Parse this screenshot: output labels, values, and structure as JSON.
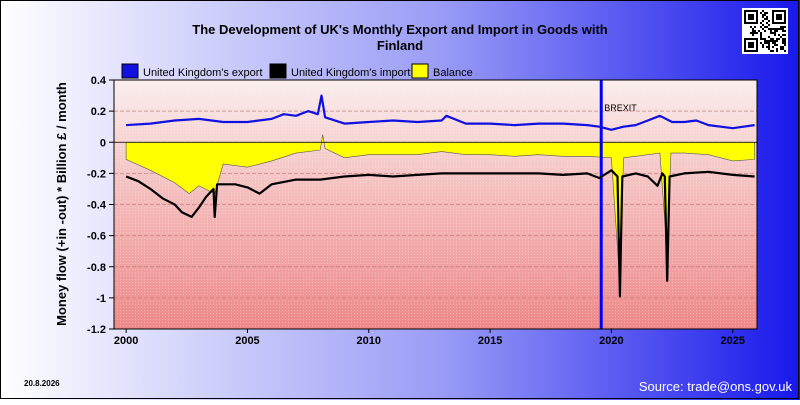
{
  "chart_data": {
    "type": "line",
    "title": "The Development of UK's Monthly Export and Import in Goods with Finland",
    "title_lines": [
      "The Development of UK's Monthly Export and Import in Goods with",
      "Finland"
    ],
    "ylabel": "Money flow (+in -out) * Billion £ / month",
    "xlabel": "",
    "ylim": [
      -1.2,
      0.4
    ],
    "xlim": [
      1999.5,
      2026.0
    ],
    "y_ticks": [
      "0.4",
      "0.2",
      "0",
      "-0.2",
      "-0.4",
      "-0.6",
      "-0.8",
      "-1",
      "-1.2"
    ],
    "x_ticks": [
      "2000",
      "2005",
      "2010",
      "2015",
      "2020",
      "2025"
    ],
    "legend_position": "top",
    "grid": "horizontal dashed lines at every 0.02 (minor) and labelled ticks every 0.2",
    "legend": [
      {
        "name": "United Kingdom's export",
        "color": "#1010e0"
      },
      {
        "name": "United Kingdom's import",
        "color": "#000000"
      },
      {
        "name": "Balance",
        "color": "#ffff00"
      }
    ],
    "annotations": [
      {
        "label": "BREXIT",
        "x": 2019.58,
        "color": "#0000ff"
      }
    ],
    "series": [
      {
        "name": "United Kingdom's export",
        "color": "#1010e0",
        "points": [
          [
            2000.0,
            0.11
          ],
          [
            2001.0,
            0.12
          ],
          [
            2002.0,
            0.14
          ],
          [
            2003.0,
            0.15
          ],
          [
            2004.0,
            0.13
          ],
          [
            2005.0,
            0.13
          ],
          [
            2006.0,
            0.15
          ],
          [
            2006.5,
            0.18
          ],
          [
            2007.0,
            0.17
          ],
          [
            2007.5,
            0.2
          ],
          [
            2007.9,
            0.18
          ],
          [
            2008.05,
            0.3
          ],
          [
            2008.2,
            0.16
          ],
          [
            2009.0,
            0.12
          ],
          [
            2010.0,
            0.13
          ],
          [
            2011.0,
            0.14
          ],
          [
            2012.0,
            0.13
          ],
          [
            2013.0,
            0.14
          ],
          [
            2013.2,
            0.17
          ],
          [
            2014.0,
            0.12
          ],
          [
            2015.0,
            0.12
          ],
          [
            2016.0,
            0.11
          ],
          [
            2017.0,
            0.12
          ],
          [
            2018.0,
            0.12
          ],
          [
            2019.0,
            0.11
          ],
          [
            2019.5,
            0.1
          ],
          [
            2020.0,
            0.08
          ],
          [
            2020.5,
            0.1
          ],
          [
            2021.0,
            0.11
          ],
          [
            2021.5,
            0.14
          ],
          [
            2022.0,
            0.17
          ],
          [
            2022.5,
            0.13
          ],
          [
            2023.0,
            0.13
          ],
          [
            2023.5,
            0.14
          ],
          [
            2024.0,
            0.11
          ],
          [
            2025.0,
            0.09
          ],
          [
            2025.9,
            0.11
          ]
        ]
      },
      {
        "name": "United Kingdom's import",
        "color": "#000000",
        "points": [
          [
            2000.0,
            -0.22
          ],
          [
            2000.5,
            -0.25
          ],
          [
            2001.0,
            -0.3
          ],
          [
            2001.5,
            -0.36
          ],
          [
            2002.0,
            -0.4
          ],
          [
            2002.3,
            -0.45
          ],
          [
            2002.7,
            -0.48
          ],
          [
            2003.0,
            -0.42
          ],
          [
            2003.3,
            -0.35
          ],
          [
            2003.6,
            -0.3
          ],
          [
            2003.65,
            -0.48
          ],
          [
            2003.75,
            -0.27
          ],
          [
            2004.5,
            -0.27
          ],
          [
            2005.0,
            -0.29
          ],
          [
            2005.5,
            -0.33
          ],
          [
            2006.0,
            -0.27
          ],
          [
            2007.0,
            -0.24
          ],
          [
            2008.0,
            -0.24
          ],
          [
            2009.0,
            -0.22
          ],
          [
            2010.0,
            -0.21
          ],
          [
            2011.0,
            -0.22
          ],
          [
            2012.0,
            -0.21
          ],
          [
            2013.0,
            -0.2
          ],
          [
            2014.0,
            -0.2
          ],
          [
            2015.0,
            -0.2
          ],
          [
            2016.0,
            -0.2
          ],
          [
            2017.0,
            -0.2
          ],
          [
            2018.0,
            -0.21
          ],
          [
            2019.0,
            -0.2
          ],
          [
            2019.5,
            -0.23
          ],
          [
            2020.0,
            -0.18
          ],
          [
            2020.25,
            -0.22
          ],
          [
            2020.35,
            -0.99
          ],
          [
            2020.45,
            -0.22
          ],
          [
            2021.0,
            -0.2
          ],
          [
            2021.5,
            -0.22
          ],
          [
            2021.9,
            -0.28
          ],
          [
            2022.1,
            -0.2
          ],
          [
            2022.2,
            -0.22
          ],
          [
            2022.3,
            -0.89
          ],
          [
            2022.4,
            -0.22
          ],
          [
            2023.0,
            -0.2
          ],
          [
            2024.0,
            -0.19
          ],
          [
            2025.0,
            -0.21
          ],
          [
            2025.9,
            -0.22
          ]
        ]
      },
      {
        "name": "Balance",
        "color": "#ffff00",
        "points": [
          [
            2000.0,
            -0.11
          ],
          [
            2001.0,
            -0.18
          ],
          [
            2002.0,
            -0.26
          ],
          [
            2002.6,
            -0.33
          ],
          [
            2003.0,
            -0.28
          ],
          [
            2003.65,
            -0.33
          ],
          [
            2004.0,
            -0.14
          ],
          [
            2005.0,
            -0.16
          ],
          [
            2006.0,
            -0.12
          ],
          [
            2007.0,
            -0.07
          ],
          [
            2008.0,
            -0.05
          ],
          [
            2008.1,
            0.05
          ],
          [
            2008.2,
            -0.04
          ],
          [
            2009.0,
            -0.1
          ],
          [
            2010.0,
            -0.08
          ],
          [
            2011.0,
            -0.08
          ],
          [
            2012.0,
            -0.08
          ],
          [
            2013.0,
            -0.06
          ],
          [
            2014.0,
            -0.08
          ],
          [
            2015.0,
            -0.08
          ],
          [
            2016.0,
            -0.09
          ],
          [
            2017.0,
            -0.08
          ],
          [
            2018.0,
            -0.09
          ],
          [
            2019.0,
            -0.09
          ],
          [
            2020.0,
            -0.1
          ],
          [
            2020.35,
            -0.91
          ],
          [
            2020.5,
            -0.1
          ],
          [
            2021.0,
            -0.09
          ],
          [
            2022.0,
            -0.07
          ],
          [
            2022.3,
            -0.72
          ],
          [
            2022.45,
            -0.07
          ],
          [
            2023.0,
            -0.07
          ],
          [
            2024.0,
            -0.08
          ],
          [
            2025.0,
            -0.12
          ],
          [
            2025.9,
            -0.11
          ]
        ]
      }
    ]
  },
  "footer": {
    "date": "20.8.2026",
    "source": "Source: trade@ons.gov.uk"
  },
  "qr_code": {
    "icon": "qr-code-icon"
  }
}
